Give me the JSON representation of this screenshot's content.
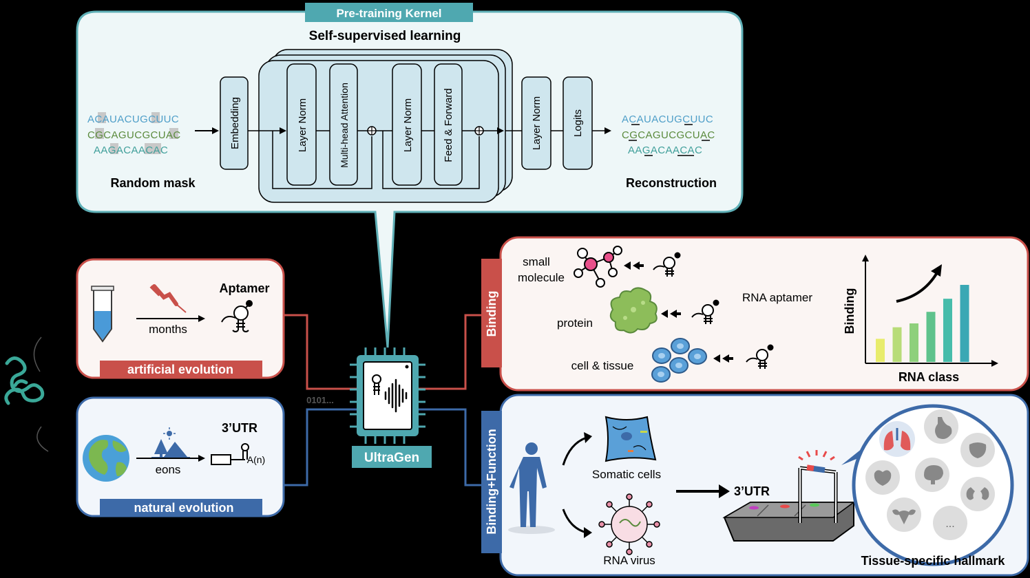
{
  "pretrain": {
    "tab": "Pre-training Kernel",
    "heading": "Self-supervised learning",
    "seq_in": [
      "ACAUACUGCUUC",
      "CGCAGUCGCUAC",
      "AAGACAACAC"
    ],
    "seq_out": [
      "ACAUACUGCUUC",
      "CGCAGUCGCUAC",
      "AAGACAACAC"
    ],
    "random_mask": "Random mask",
    "reconstruction": "Reconstruction",
    "blocks": {
      "embedding": "Embedding",
      "layer_norm_1": "Layer Norm",
      "attention": "Multi-head Attention",
      "layer_norm_2": "Layer Norm",
      "feed_forward": "Feed & Forward",
      "layer_norm_3": "Layer Norm",
      "logits": "Logits"
    }
  },
  "artificial": {
    "title": "Aptamer",
    "time": "months",
    "banner": "artificial evolution"
  },
  "natural": {
    "title": "3’UTR",
    "tail": "A(n)",
    "time": "eons",
    "banner": "natural evolution"
  },
  "center": {
    "bits": "0101...",
    "label": "UltraGen"
  },
  "binding": {
    "tab": "Binding",
    "small_molecule": [
      "small",
      "molecule"
    ],
    "protein": "protein",
    "cell_tissue": "cell & tissue",
    "rna_aptamer": "RNA aptamer",
    "chart_ylabel": "Binding",
    "chart_xlabel": "RNA class"
  },
  "binding_function": {
    "tab": "Binding+Function",
    "somatic": "Somatic cells",
    "virus": "RNA virus",
    "utr": "3’UTR",
    "hallmark": "Tissue-specific hallmark",
    "more": "..."
  },
  "chart_data": {
    "type": "bar",
    "xlabel": "RNA class",
    "ylabel": "Binding",
    "categories": [
      "",
      "",
      "",
      "",
      "",
      ""
    ],
    "values": [
      30,
      45,
      50,
      65,
      82,
      100
    ],
    "colors": [
      "#e8ec6c",
      "#b8dc78",
      "#8ed07c",
      "#5ec28c",
      "#46bcaa",
      "#3aa8b4"
    ]
  },
  "colors": {
    "teal_border": "#5fb0b7",
    "teal_fill": "#eef7f8",
    "block_fill": "#cfe6ee",
    "red": "#c9504a",
    "blue": "#3d6aa8",
    "tab_teal": "#4fa8b0"
  }
}
